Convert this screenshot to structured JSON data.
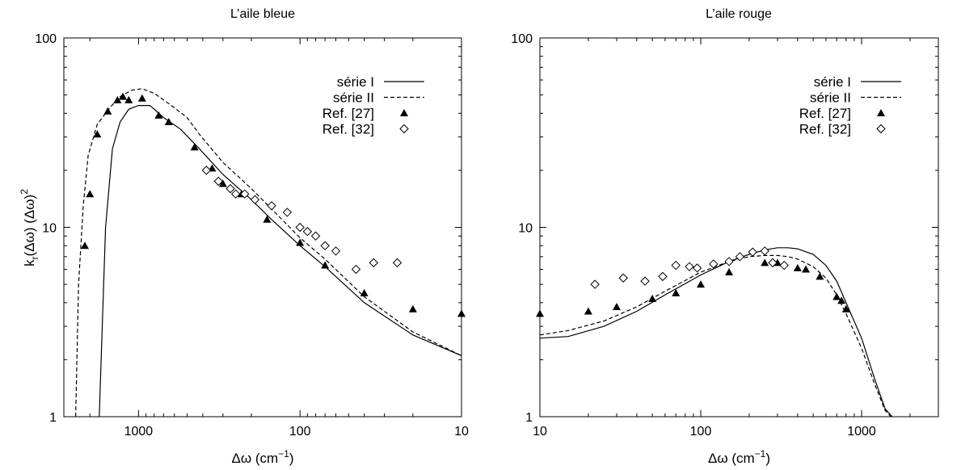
{
  "ylabel": "k_r(Δω) (Δω)^2",
  "chart_data": [
    {
      "type": "line",
      "title": "L’aile bleue",
      "xlabel": "Δω (cm⁻¹)",
      "xscale": "log",
      "yscale": "log",
      "xreversed": true,
      "xlim": [
        2900,
        10
      ],
      "ylim": [
        1,
        100
      ],
      "xticks": [
        1000,
        100,
        10
      ],
      "xtick_labels": [
        "1000",
        "100",
        "10"
      ],
      "yticks": [
        1,
        10,
        100
      ],
      "ytick_labels": [
        "1",
        "10",
        "100"
      ],
      "legend_position": "top-right",
      "series": [
        {
          "name": "série I",
          "style": "solid",
          "x": [
            1750,
            1600,
            1450,
            1300,
            1150,
            1000,
            850,
            700,
            550,
            420,
            300,
            200,
            150,
            100,
            70,
            40,
            20,
            10
          ],
          "y": [
            1,
            10,
            26,
            36,
            42,
            44,
            44,
            38,
            33,
            26,
            19,
            14,
            11,
            8,
            6.2,
            4,
            2.7,
            2.1
          ]
        },
        {
          "name": "série II",
          "style": "dashed",
          "x": [
            2450,
            2350,
            2200,
            2050,
            1800,
            1500,
            1300,
            1100,
            950,
            800,
            650,
            500,
            420,
            300,
            200,
            150,
            100,
            70,
            40,
            20,
            10
          ],
          "y": [
            1,
            5,
            13,
            24,
            35,
            43,
            49,
            53,
            54,
            51,
            45,
            38,
            31,
            22,
            16,
            12.5,
            8.8,
            6.8,
            4.3,
            2.8,
            2.1
          ]
        },
        {
          "name": "Ref. [27]",
          "style": "filled-triangle",
          "x": [
            2150,
            2000,
            1800,
            1550,
            1350,
            1250,
            1150,
            950,
            750,
            650,
            450,
            350,
            300,
            230,
            160,
            100,
            70,
            40,
            20,
            10
          ],
          "y": [
            8,
            15,
            31,
            41,
            47,
            49,
            47,
            48,
            39,
            36,
            26.5,
            20.5,
            17,
            15,
            11,
            8.3,
            6.3,
            4.5,
            3.7,
            3.5
          ]
        },
        {
          "name": "Ref. [32]",
          "style": "open-diamond",
          "x": [
            380,
            320,
            270,
            250,
            220,
            190,
            150,
            120,
            100,
            90,
            80,
            70,
            60,
            45,
            35,
            25
          ],
          "y": [
            20,
            17.5,
            16,
            15,
            15,
            14,
            13,
            12,
            10,
            9.5,
            9,
            8,
            7.5,
            6,
            6.5,
            6.5
          ]
        }
      ]
    },
    {
      "type": "line",
      "title": "L’aile rouge",
      "xlabel": "Δω (cm⁻¹)",
      "xscale": "log",
      "yscale": "log",
      "xlim": [
        10,
        3000
      ],
      "ylim": [
        1,
        100
      ],
      "xticks": [
        10,
        100,
        1000
      ],
      "xtick_labels": [
        "10",
        "100",
        "1000"
      ],
      "yticks": [
        1,
        10,
        100
      ],
      "ytick_labels": [
        "1",
        "10",
        "100"
      ],
      "legend_position": "top-right",
      "series": [
        {
          "name": "série I",
          "style": "solid",
          "x": [
            10,
            15,
            25,
            40,
            60,
            100,
            150,
            200,
            250,
            300,
            350,
            400,
            500,
            600,
            700,
            800,
            1000,
            1200,
            1400,
            1550
          ],
          "y": [
            2.6,
            2.65,
            3.0,
            3.6,
            4.4,
            5.6,
            6.6,
            7.2,
            7.6,
            7.8,
            7.8,
            7.7,
            7.2,
            6.3,
            5.2,
            4.0,
            2.6,
            1.6,
            1.1,
            1
          ]
        },
        {
          "name": "série II",
          "style": "dashed",
          "x": [
            10,
            15,
            25,
            40,
            60,
            100,
            150,
            200,
            250,
            300,
            350,
            400,
            500,
            600,
            700,
            800,
            1000,
            1200,
            1400,
            1520
          ],
          "y": [
            2.7,
            2.85,
            3.2,
            3.8,
            4.6,
            5.8,
            6.6,
            7.0,
            7.1,
            7.1,
            7.0,
            6.8,
            6.2,
            5.4,
            4.4,
            3.5,
            2.3,
            1.5,
            1.08,
            1
          ]
        },
        {
          "name": "Ref. [27]",
          "style": "filled-triangle",
          "x": [
            10,
            20,
            30,
            50,
            70,
            100,
            150,
            250,
            300,
            400,
            450,
            550,
            700,
            750,
            800
          ],
          "y": [
            3.5,
            3.6,
            3.8,
            4.2,
            4.5,
            5.0,
            5.8,
            6.5,
            6.5,
            6.1,
            6.0,
            5.5,
            4.3,
            4.1,
            3.7
          ]
        },
        {
          "name": "Ref. [32]",
          "style": "open-diamond",
          "x": [
            22,
            33,
            45,
            58,
            70,
            85,
            95,
            120,
            150,
            175,
            210,
            250,
            280,
            330
          ],
          "y": [
            5.0,
            5.4,
            5.2,
            5.5,
            6.3,
            6.2,
            6.1,
            6.4,
            6.6,
            7.0,
            7.4,
            7.5,
            6.5,
            6.3
          ]
        }
      ]
    }
  ]
}
